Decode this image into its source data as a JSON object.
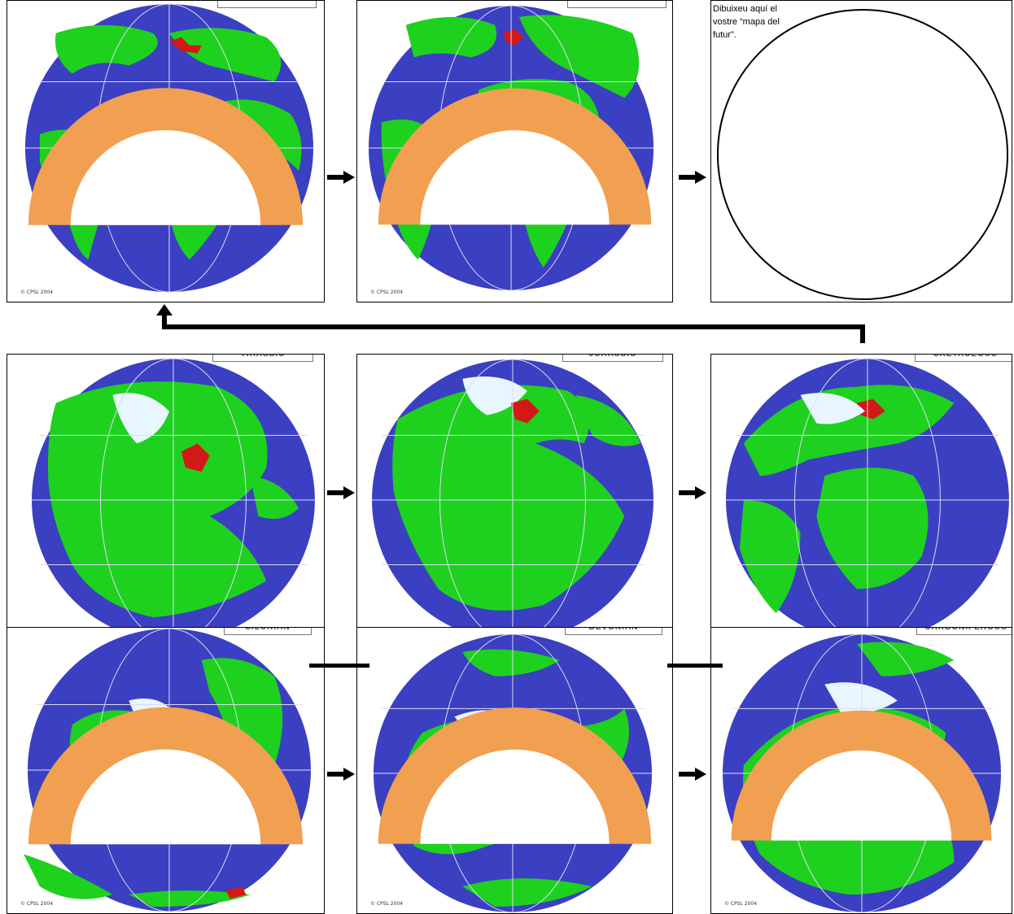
{
  "panels": [
    {
      "id": "top-left",
      "era_label": "",
      "credit": "© CPSL 2004"
    },
    {
      "id": "top-mid",
      "era_label": "",
      "credit": "© CPSL 2004"
    },
    {
      "id": "mid-left",
      "era_label": "TRIASSIC",
      "credit": ""
    },
    {
      "id": "mid-mid",
      "era_label": "JURASSIC",
      "credit": ""
    },
    {
      "id": "mid-right",
      "era_label": "CRETACEOUS",
      "credit": ""
    },
    {
      "id": "bot-left",
      "era_label": "SILURIAN",
      "credit": "© CPSL 2004"
    },
    {
      "id": "bot-mid",
      "era_label": "DEVONIAN",
      "credit": "© CPSL 2004"
    },
    {
      "id": "bot-right",
      "era_label": "CARBONIFEROUS",
      "credit": "© CPSL 2004"
    }
  ],
  "future_panel": {
    "instruction": "Dibuixeu aquí el vostre “mapa del futur”."
  },
  "colors": {
    "ocean": "#3b3fc1",
    "land": "#1ed11e",
    "ice": "#e8f6ff",
    "shelf": "#7fd3f0",
    "red": "#d41717",
    "grid": "#dcdcf0"
  }
}
